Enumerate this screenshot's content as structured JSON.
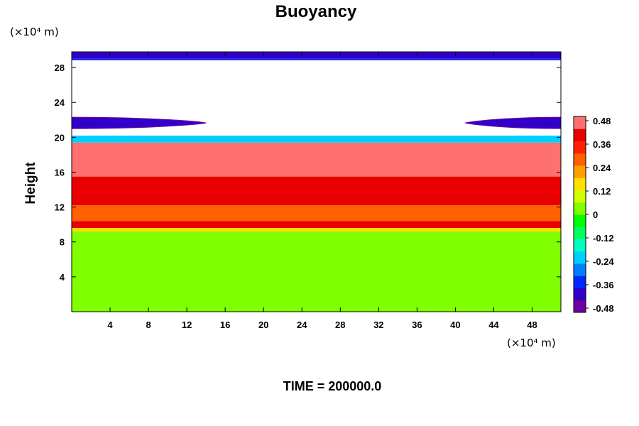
{
  "chart_data": {
    "type": "heatmap",
    "title": "Buoyancy",
    "ylabel": "Height",
    "xlabel": "",
    "x_unit": "(×10⁴ m)",
    "y_unit": "(×10⁴ m)",
    "xlim": [
      0,
      51
    ],
    "ylim": [
      0,
      29.8
    ],
    "x_ticks": [
      "4",
      "8",
      "12",
      "16",
      "20",
      "24",
      "28",
      "32",
      "36",
      "40",
      "44",
      "48"
    ],
    "y_ticks": [
      "4",
      "8",
      "12",
      "16",
      "20",
      "24",
      "28"
    ],
    "colorbar": {
      "range": [
        -0.48,
        0.48
      ],
      "ticks": [
        "0.48",
        "0.36",
        "0.24",
        "0.12",
        "0",
        "-0.12",
        "-0.24",
        "-0.36",
        "-0.48"
      ],
      "colors_low_to_high": [
        "#7000a0",
        "#3000c8",
        "#0028ff",
        "#0080ff",
        "#00d0ff",
        "#00ffc0",
        "#00ff60",
        "#00ff00",
        "#80ff00",
        "#d0ff00",
        "#ffe000",
        "#ffa000",
        "#ff6000",
        "#ff2000",
        "#e80000",
        "#ff7070"
      ]
    },
    "layers": [
      {
        "height_range": [
          0,
          9.2
        ],
        "buoyancy": 0.0
      },
      {
        "height_range": [
          9.2,
          9.6
        ],
        "buoyancy": 0.12
      },
      {
        "height_range": [
          9.6,
          10.4
        ],
        "buoyancy": 0.38
      },
      {
        "height_range": [
          10.4,
          12.2
        ],
        "buoyancy": 0.26
      },
      {
        "height_range": [
          12.2,
          15.5
        ],
        "buoyancy": 0.38
      },
      {
        "height_range": [
          15.5,
          19.4
        ],
        "buoyancy": 0.48
      },
      {
        "height_range": [
          19.4,
          20.2
        ],
        "buoyancy": -0.2
      },
      {
        "height_range": [
          20.2,
          29.0
        ],
        "buoyancy": null
      },
      {
        "height_range": [
          29.0,
          29.8
        ],
        "buoyancy": -0.4
      }
    ],
    "features": [
      {
        "x_range": [
          0,
          14
        ],
        "height_range": [
          21.0,
          22.3
        ],
        "buoyancy": -0.4
      },
      {
        "x_range": [
          41,
          51
        ],
        "height_range": [
          21.0,
          22.3
        ],
        "buoyancy": -0.4
      }
    ]
  },
  "footer": {
    "time_label": "TIME = 200000.0"
  }
}
